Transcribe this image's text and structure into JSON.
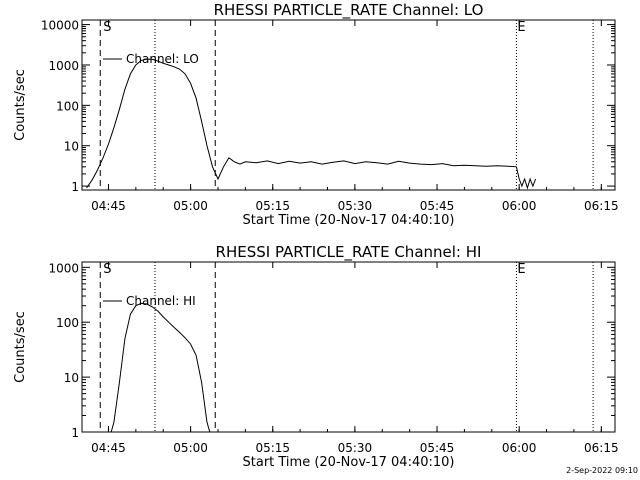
{
  "footer": {
    "timestamp": "2-Sep-2022 09:10"
  },
  "chart_data": [
    {
      "type": "line",
      "title": "RHESSI PARTICLE_RATE Channel: LO",
      "xlabel": "Start Time (20-Nov-17 04:40:10)",
      "ylabel": "Counts/sec",
      "yscale": "log",
      "xlim": [
        0.1667,
        97.5
      ],
      "ylim": [
        0.8,
        13000
      ],
      "xticks": [
        5,
        20,
        35,
        50,
        65,
        80,
        95
      ],
      "xtick_labels": [
        "04:45",
        "05:00",
        "05:15",
        "05:30",
        "05:45",
        "06:00",
        "06:15"
      ],
      "yticks": [
        1,
        10,
        100,
        1000,
        10000
      ],
      "ytick_labels": [
        "1",
        "10",
        "100",
        "1000",
        "10000"
      ],
      "legend": "Channel: LO",
      "markers": {
        "S": "S",
        "E": "E",
        "S_x": 3.5,
        "E_x": 79.5
      },
      "dashed_lines_x": [
        3.5,
        24.5
      ],
      "dotted_lines_x": [
        13.5,
        79.5,
        93.5
      ],
      "series": [
        {
          "name": "Channel: LO",
          "x": [
            1,
            2,
            3,
            4,
            5,
            6,
            7,
            8,
            9,
            10,
            11,
            12,
            13,
            14,
            15,
            16,
            17,
            18,
            19,
            20,
            21,
            22,
            23,
            24,
            25,
            26,
            27,
            28,
            29,
            30,
            32,
            34,
            36,
            38,
            40,
            42,
            44,
            46,
            48,
            50,
            52,
            54,
            56,
            58,
            60,
            62,
            64,
            66,
            68,
            70,
            72,
            74,
            76,
            78,
            79.5,
            80,
            80.5,
            81,
            81.5,
            82,
            82.5,
            83
          ],
          "y": [
            0.9,
            1.4,
            2.5,
            5,
            11,
            28,
            80,
            250,
            600,
            1000,
            1300,
            1400,
            1380,
            1250,
            1100,
            1000,
            900,
            780,
            600,
            350,
            150,
            40,
            10,
            3,
            1.5,
            3,
            5,
            4,
            3.5,
            4,
            3.8,
            4.2,
            3.6,
            4.1,
            3.7,
            4,
            3.5,
            3.9,
            4.2,
            3.6,
            4,
            3.8,
            3.5,
            4.1,
            3.7,
            3.5,
            3.4,
            3.6,
            3.2,
            3.3,
            3.2,
            3.1,
            3.2,
            3.1,
            3,
            1.5,
            1,
            1.5,
            0.9,
            1.5,
            1,
            1.5
          ]
        }
      ]
    },
    {
      "type": "line",
      "title": "RHESSI PARTICLE_RATE Channel: HI",
      "xlabel": "Start Time (20-Nov-17 04:40:10)",
      "ylabel": "Counts/sec",
      "yscale": "log",
      "xlim": [
        0.1667,
        97.5
      ],
      "ylim": [
        1,
        1250
      ],
      "xticks": [
        5,
        20,
        35,
        50,
        65,
        80,
        95
      ],
      "xtick_labels": [
        "04:45",
        "05:00",
        "05:15",
        "05:30",
        "05:45",
        "06:00",
        "06:15"
      ],
      "yticks": [
        1,
        10,
        100,
        1000
      ],
      "ytick_labels": [
        "1",
        "10",
        "100",
        "1000"
      ],
      "legend": "Channel: HI",
      "markers": {
        "S": "S",
        "E": "E",
        "S_x": 3.5,
        "E_x": 79.5
      },
      "dashed_lines_x": [
        3.5,
        24.5
      ],
      "dotted_lines_x": [
        13.5,
        79.5,
        93.5
      ],
      "series": [
        {
          "name": "Channel: HI",
          "x": [
            5.5,
            6,
            7,
            8,
            9,
            10,
            11,
            12,
            13,
            14,
            15,
            16,
            17,
            18,
            19,
            20,
            21,
            22,
            23,
            23.5
          ],
          "y": [
            1,
            1.5,
            8,
            50,
            140,
            200,
            220,
            215,
            190,
            160,
            125,
            100,
            80,
            65,
            52,
            40,
            25,
            8,
            1.5,
            1
          ]
        }
      ]
    }
  ]
}
